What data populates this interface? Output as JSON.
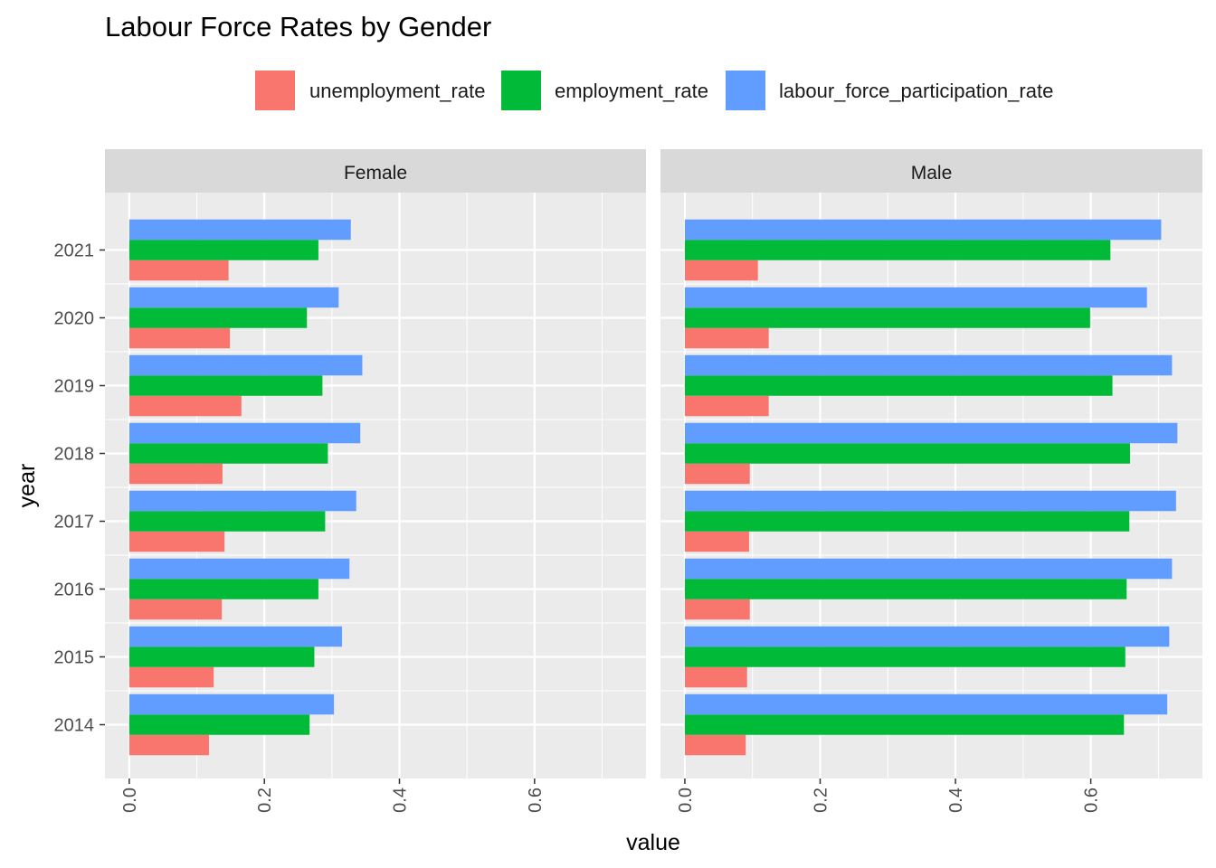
{
  "chart_data": {
    "type": "bar",
    "orientation": "horizontal",
    "title": "Labour Force Rates by Gender",
    "xlabel": "value",
    "ylabel": "year",
    "xlim": [
      -0.036,
      0.765
    ],
    "x_ticks": [
      "0.0",
      "0.2",
      "0.4",
      "0.6"
    ],
    "x_tick_values": [
      0.0,
      0.2,
      0.4,
      0.6
    ],
    "categories": [
      "2014",
      "2015",
      "2016",
      "2017",
      "2018",
      "2019",
      "2020",
      "2021"
    ],
    "legend_position": "top",
    "grid": true,
    "series": [
      {
        "name": "unemployment_rate",
        "color": "#F8766D"
      },
      {
        "name": "employment_rate",
        "color": "#00BA38"
      },
      {
        "name": "labour_force_participation_rate",
        "color": "#619CFF"
      }
    ],
    "facets": [
      {
        "label": "Female",
        "values": {
          "unemployment_rate": [
            0.118,
            0.125,
            0.137,
            0.141,
            0.138,
            0.166,
            0.149,
            0.147
          ],
          "employment_rate": [
            0.267,
            0.274,
            0.28,
            0.29,
            0.294,
            0.286,
            0.263,
            0.28
          ],
          "labour_force_participation_rate": [
            0.303,
            0.315,
            0.326,
            0.336,
            0.342,
            0.345,
            0.31,
            0.328
          ]
        }
      },
      {
        "label": "Male",
        "values": {
          "unemployment_rate": [
            0.09,
            0.092,
            0.096,
            0.095,
            0.096,
            0.124,
            0.124,
            0.108
          ],
          "employment_rate": [
            0.649,
            0.651,
            0.653,
            0.657,
            0.658,
            0.632,
            0.599,
            0.629
          ],
          "labour_force_participation_rate": [
            0.713,
            0.716,
            0.72,
            0.726,
            0.728,
            0.72,
            0.683,
            0.704
          ]
        }
      }
    ]
  }
}
